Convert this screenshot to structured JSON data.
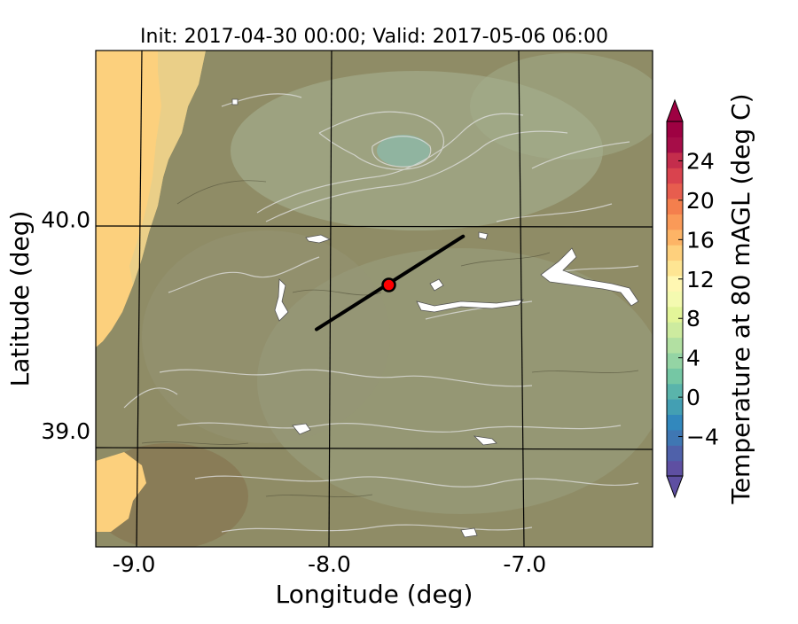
{
  "title": "Init: 2017-04-30 00:00; Valid: 2017-05-06 06:00",
  "map": {
    "xlabel": "Longitude (deg)",
    "ylabel": "Latitude (deg)",
    "xticks": [
      {
        "value": -9.0,
        "label": "-9.0"
      },
      {
        "value": -8.0,
        "label": "-8.0"
      },
      {
        "value": -7.0,
        "label": "-7.0"
      }
    ],
    "yticks": [
      {
        "value": 40.0,
        "label": "40.0"
      },
      {
        "value": 39.0,
        "label": "39.0"
      }
    ],
    "lon_range": [
      -9.25,
      -6.4
    ],
    "lat_range": [
      38.45,
      40.8
    ],
    "transect": {
      "start": [
        -8.12,
        39.48
      ],
      "end": [
        -7.37,
        39.92
      ]
    },
    "site_marker": {
      "lon": -7.75,
      "lat": 39.69,
      "fill": "#ff0000"
    },
    "colors": {
      "terrain": "#8f8c66",
      "ocean": "#fcd07d",
      "hill": "#a7b191",
      "contour": "#e2e2e2"
    }
  },
  "colorbar": {
    "label": "Temperature at 80 mAGL (deg C)",
    "range": [
      -8,
      28
    ],
    "ticks": [
      {
        "value": -4,
        "label": "−4"
      },
      {
        "value": 0,
        "label": "0"
      },
      {
        "value": 4,
        "label": "4"
      },
      {
        "value": 8,
        "label": "8"
      },
      {
        "value": 12,
        "label": "12"
      },
      {
        "value": 16,
        "label": "16"
      },
      {
        "value": 20,
        "label": "20"
      },
      {
        "value": 24,
        "label": "24"
      }
    ],
    "colors": [
      "#5e4fa2",
      "#4f61aa",
      "#3f77b3",
      "#3288bd",
      "#439fb3",
      "#5ab4ab",
      "#75c7a4",
      "#94d4a4",
      "#b2e0a2",
      "#cdeb9f",
      "#e3f599",
      "#f4fab0",
      "#fff7b2",
      "#fee593",
      "#fed07d",
      "#fdb466",
      "#fa9a58",
      "#f47f4d",
      "#e75d4e",
      "#d9434e",
      "#c42d4c",
      "#a60d48",
      "#9e0142"
    ]
  }
}
